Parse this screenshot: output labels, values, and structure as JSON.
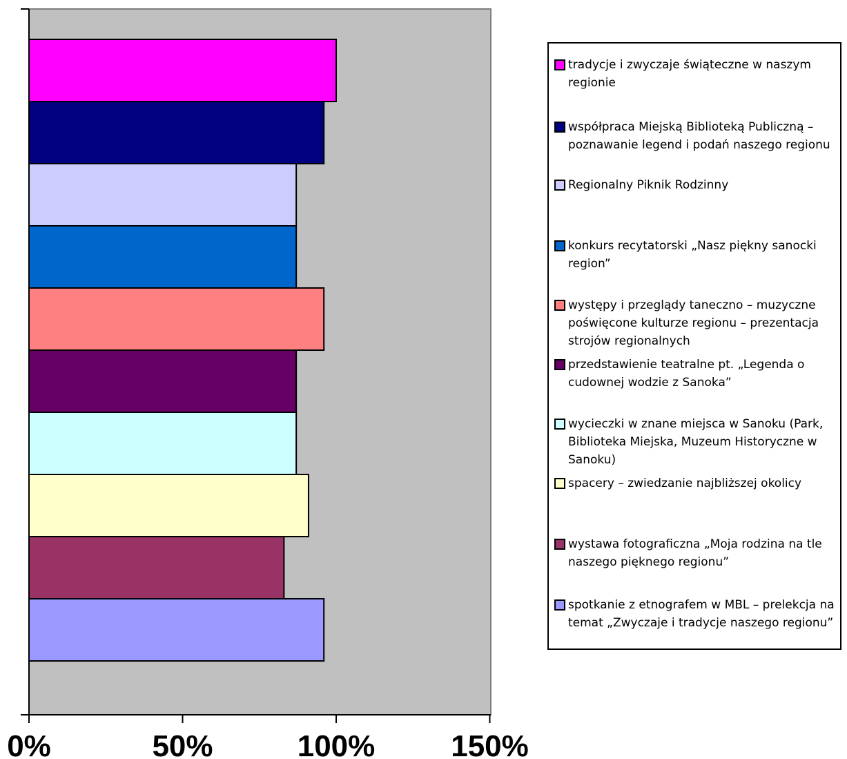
{
  "chart_data": {
    "type": "bar",
    "orientation": "horizontal",
    "title": "",
    "xlabel": "",
    "ylabel": "",
    "xlim": [
      0,
      1.5
    ],
    "x_ticks": [
      "0%",
      "50%",
      "100%",
      "150%"
    ],
    "grid": false,
    "plot_background": "#C0C0C0",
    "legend_position": "right",
    "categories": [
      "tradycje i zwyczaje świąteczne w naszym regionie",
      "współpraca Miejską Biblioteką Publiczną – poznawanie legend i podań naszego regionu",
      "Regionalny Piknik Rodzinny",
      "konkurs recytatorski „Nasz piękny sanocki region”",
      "występy i przeglądy taneczno – muzyczne poświęcone kulturze regionu – prezentacja strojów regionalnych",
      "przedstawienie teatralne pt. „Legenda o cudownej wodzie z Sanoka”",
      "wycieczki w znane miejsca w Sanoku (Park, Biblioteka Miejska, Muzeum Historyczne w Sanoku)",
      "spacery – zwiedzanie najbliższej okolicy",
      "wystawa fotograficzna „Moja rodzina na tle naszego pięknego regionu”",
      "spotkanie z etnografem w MBL – prelekcja na temat „Zwyczaje i tradycje naszego regionu”"
    ],
    "values": [
      1.0,
      0.96,
      0.87,
      0.87,
      0.96,
      0.87,
      0.87,
      0.91,
      0.83,
      0.96
    ],
    "colors": [
      "#FF00FF",
      "#000080",
      "#CCCCFF",
      "#0066CC",
      "#FF8080",
      "#660066",
      "#CCFFFF",
      "#FFFFCC",
      "#993366",
      "#9999FF"
    ]
  }
}
